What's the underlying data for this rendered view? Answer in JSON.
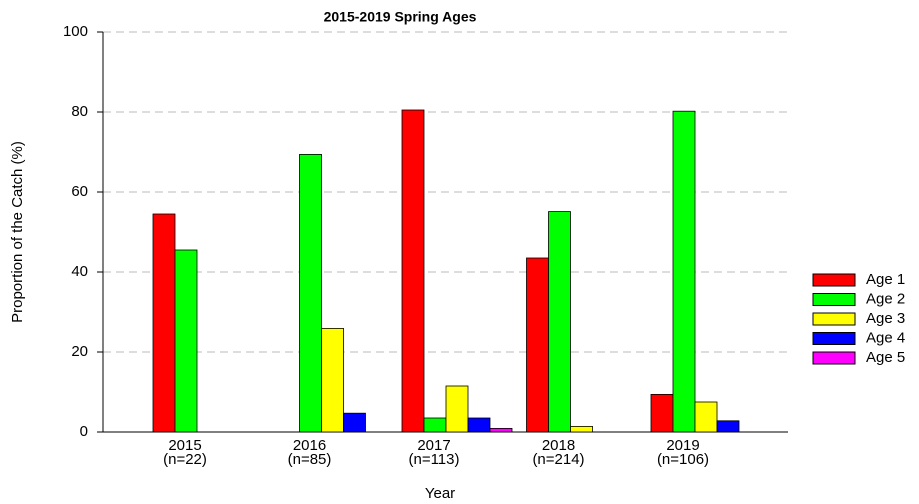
{
  "chart_data": {
    "type": "bar",
    "title": "2015-2019 Spring Ages",
    "x_label": "Year",
    "y_label": "Proportion of the Catch (%)",
    "categories": [
      "2015",
      "2016",
      "2017",
      "2018",
      "2019"
    ],
    "sample_sizes": [
      "(n=22)",
      "(n=85)",
      "(n=113)",
      "(n=214)",
      "(n=106)"
    ],
    "series": [
      {
        "name": "Age 1",
        "color": "#ff0000",
        "values": [
          54.5,
          0,
          80.5,
          43.5,
          9.4
        ]
      },
      {
        "name": "Age 2",
        "color": "#00ff00",
        "values": [
          45.5,
          69.4,
          3.5,
          55.1,
          80.2
        ]
      },
      {
        "name": "Age 3",
        "color": "#ffff00",
        "values": [
          0,
          25.9,
          11.5,
          1.4,
          7.5
        ]
      },
      {
        "name": "Age 4",
        "color": "#0000ff",
        "values": [
          0,
          4.7,
          3.5,
          0,
          2.8
        ]
      },
      {
        "name": "Age 5",
        "color": "#ff00ff",
        "values": [
          0,
          0,
          0.9,
          0,
          0
        ]
      }
    ],
    "ylim": [
      0,
      100
    ],
    "yticks": [
      0,
      20,
      40,
      60,
      80,
      100
    ],
    "grid": true,
    "legend": "right"
  }
}
